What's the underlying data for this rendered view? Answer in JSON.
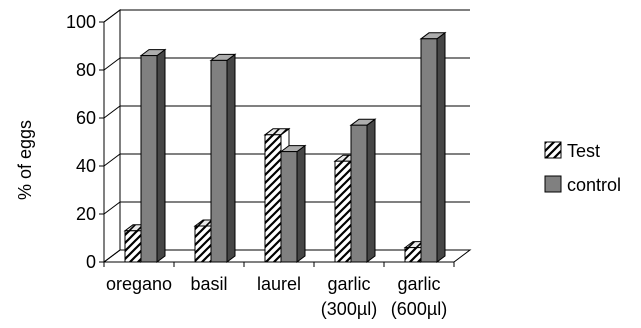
{
  "chart_data": {
    "type": "bar",
    "ylabel": "% of eggs",
    "xlabel": "",
    "ylim": [
      0,
      100
    ],
    "yticks": [
      0,
      20,
      40,
      60,
      80,
      100
    ],
    "grid": true,
    "legend_position": "right",
    "categories": [
      [
        "oregano"
      ],
      [
        "basil"
      ],
      [
        "laurel"
      ],
      [
        "garlic",
        "(300µl)"
      ],
      [
        "garlic",
        "(600µl)"
      ]
    ],
    "series": [
      {
        "name": "Test",
        "pattern": "diagonal-hatch",
        "values": [
          13,
          15,
          53,
          42,
          6
        ]
      },
      {
        "name": "control",
        "color": "#808080",
        "values": [
          86,
          84,
          46,
          57,
          93
        ]
      }
    ]
  }
}
